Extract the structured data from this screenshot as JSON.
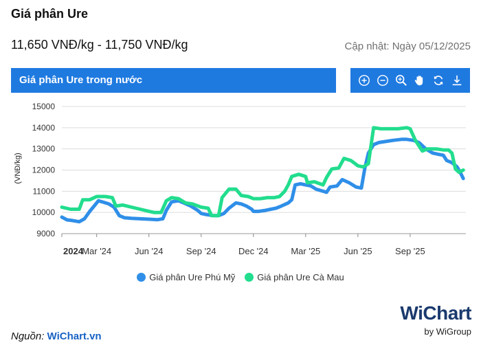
{
  "header": {
    "title": "Giá phân Ure",
    "price_range": "11,650 VNĐ/kg - 11,750 VNĐ/kg",
    "updated": "Cập nhật: Ngày 05/12/2025"
  },
  "banner": {
    "label": "Giá phân Ure trong nước"
  },
  "toolbar": {
    "icons": [
      "zoom-in-icon",
      "zoom-out-icon",
      "magnifier-icon",
      "pan-hand-icon",
      "reset-icon",
      "download-icon"
    ]
  },
  "source": {
    "prefix": "Nguồn: ",
    "name": "WiChart.vn"
  },
  "logo": {
    "wi": "Wi",
    "chart": "Chart",
    "sub": "by WiGroup"
  },
  "chart_data": {
    "type": "line",
    "title": "",
    "xlabel": "",
    "ylabel": "(VNĐ/kg)",
    "ylim": [
      9000,
      15000
    ],
    "yticks": [
      "9000",
      "10000",
      "11000",
      "12000",
      "13000",
      "14000",
      "15000"
    ],
    "xlim": [
      0,
      23.2
    ],
    "xticks": [
      {
        "pos": 0,
        "label": "2024"
      },
      {
        "pos": 2,
        "label": "Mar '24"
      },
      {
        "pos": 5,
        "label": "Jun '24"
      },
      {
        "pos": 8,
        "label": "Sep '24"
      },
      {
        "pos": 11,
        "label": "Dec '24"
      },
      {
        "pos": 14,
        "label": "Mar '25"
      },
      {
        "pos": 17,
        "label": "Jun '25"
      },
      {
        "pos": 20,
        "label": "Sep '25"
      }
    ],
    "grid": true,
    "legend_position": "bottom",
    "series": [
      {
        "name": "Giá phân Ure Phú Mỹ",
        "color": "#2f8fe8",
        "points": [
          [
            0,
            9780
          ],
          [
            0.3,
            9650
          ],
          [
            0.6,
            9620
          ],
          [
            1,
            9560
          ],
          [
            1.3,
            9700
          ],
          [
            1.6,
            10050
          ],
          [
            1.9,
            10350
          ],
          [
            2.1,
            10550
          ],
          [
            2.4,
            10480
          ],
          [
            2.7,
            10400
          ],
          [
            3,
            10250
          ],
          [
            3.3,
            9850
          ],
          [
            3.6,
            9750
          ],
          [
            4,
            9720
          ],
          [
            4.5,
            9700
          ],
          [
            5,
            9680
          ],
          [
            5.5,
            9660
          ],
          [
            5.8,
            9700
          ],
          [
            6,
            10100
          ],
          [
            6.3,
            10500
          ],
          [
            6.7,
            10550
          ],
          [
            7,
            10450
          ],
          [
            7.4,
            10300
          ],
          [
            7.8,
            10100
          ],
          [
            8,
            9950
          ],
          [
            8.3,
            9900
          ],
          [
            8.7,
            9850
          ],
          [
            9,
            9850
          ],
          [
            9.3,
            9950
          ],
          [
            9.6,
            10200
          ],
          [
            10,
            10450
          ],
          [
            10.3,
            10400
          ],
          [
            10.6,
            10300
          ],
          [
            10.9,
            10150
          ],
          [
            11,
            10050
          ],
          [
            11.3,
            10050
          ],
          [
            11.7,
            10100
          ],
          [
            12,
            10150
          ],
          [
            12.3,
            10200
          ],
          [
            12.6,
            10300
          ],
          [
            13,
            10450
          ],
          [
            13.2,
            10600
          ],
          [
            13.4,
            11300
          ],
          [
            13.7,
            11350
          ],
          [
            14,
            11300
          ],
          [
            14.3,
            11250
          ],
          [
            14.6,
            11100
          ],
          [
            15,
            11000
          ],
          [
            15.2,
            10950
          ],
          [
            15.4,
            11200
          ],
          [
            15.8,
            11250
          ],
          [
            16.1,
            11550
          ],
          [
            16.5,
            11400
          ],
          [
            16.9,
            11200
          ],
          [
            17.2,
            11150
          ],
          [
            17.4,
            12100
          ],
          [
            17.6,
            12800
          ],
          [
            17.9,
            13200
          ],
          [
            18.2,
            13300
          ],
          [
            18.6,
            13350
          ],
          [
            19,
            13400
          ],
          [
            19.5,
            13450
          ],
          [
            19.8,
            13450
          ],
          [
            20.2,
            13400
          ],
          [
            20.5,
            13300
          ],
          [
            20.9,
            13000
          ],
          [
            21.3,
            12800
          ],
          [
            21.6,
            12750
          ],
          [
            21.9,
            12700
          ],
          [
            22.1,
            12450
          ],
          [
            22.4,
            12350
          ],
          [
            22.7,
            12150
          ],
          [
            22.9,
            11850
          ],
          [
            23.05,
            11600
          ]
        ]
      },
      {
        "name": "Giá phân Ure Cà Mau",
        "color": "#22dd8e",
        "points": [
          [
            0,
            10250
          ],
          [
            0.5,
            10150
          ],
          [
            1,
            10150
          ],
          [
            1.2,
            10600
          ],
          [
            1.6,
            10600
          ],
          [
            2,
            10750
          ],
          [
            2.5,
            10750
          ],
          [
            2.9,
            10700
          ],
          [
            3.1,
            10300
          ],
          [
            3.5,
            10350
          ],
          [
            4,
            10250
          ],
          [
            4.5,
            10150
          ],
          [
            5,
            10050
          ],
          [
            5.3,
            10000
          ],
          [
            5.7,
            10000
          ],
          [
            6,
            10550
          ],
          [
            6.3,
            10700
          ],
          [
            6.7,
            10650
          ],
          [
            7.1,
            10450
          ],
          [
            7.5,
            10400
          ],
          [
            8,
            10250
          ],
          [
            8.4,
            10200
          ],
          [
            8.6,
            9850
          ],
          [
            9,
            9850
          ],
          [
            9.2,
            10700
          ],
          [
            9.6,
            11100
          ],
          [
            10,
            11100
          ],
          [
            10.3,
            10800
          ],
          [
            10.7,
            10750
          ],
          [
            11,
            10650
          ],
          [
            11.4,
            10650
          ],
          [
            11.8,
            10700
          ],
          [
            12.2,
            10700
          ],
          [
            12.5,
            10750
          ],
          [
            12.8,
            11000
          ],
          [
            13,
            11300
          ],
          [
            13.2,
            11700
          ],
          [
            13.6,
            11800
          ],
          [
            14,
            11700
          ],
          [
            14.1,
            11400
          ],
          [
            14.5,
            11450
          ],
          [
            15,
            11300
          ],
          [
            15.2,
            11650
          ],
          [
            15.5,
            12050
          ],
          [
            15.9,
            12100
          ],
          [
            16.2,
            12550
          ],
          [
            16.6,
            12450
          ],
          [
            17,
            12200
          ],
          [
            17.3,
            12150
          ],
          [
            17.6,
            12300
          ],
          [
            17.9,
            14000
          ],
          [
            18.3,
            13950
          ],
          [
            18.8,
            13950
          ],
          [
            19.3,
            13950
          ],
          [
            19.8,
            14000
          ],
          [
            20,
            13950
          ],
          [
            20.3,
            13400
          ],
          [
            20.7,
            12900
          ],
          [
            21,
            13000
          ],
          [
            21.5,
            13000
          ],
          [
            21.9,
            12950
          ],
          [
            22.2,
            12950
          ],
          [
            22.4,
            12800
          ],
          [
            22.6,
            12050
          ],
          [
            22.8,
            11900
          ],
          [
            23.05,
            12000
          ]
        ]
      }
    ]
  }
}
